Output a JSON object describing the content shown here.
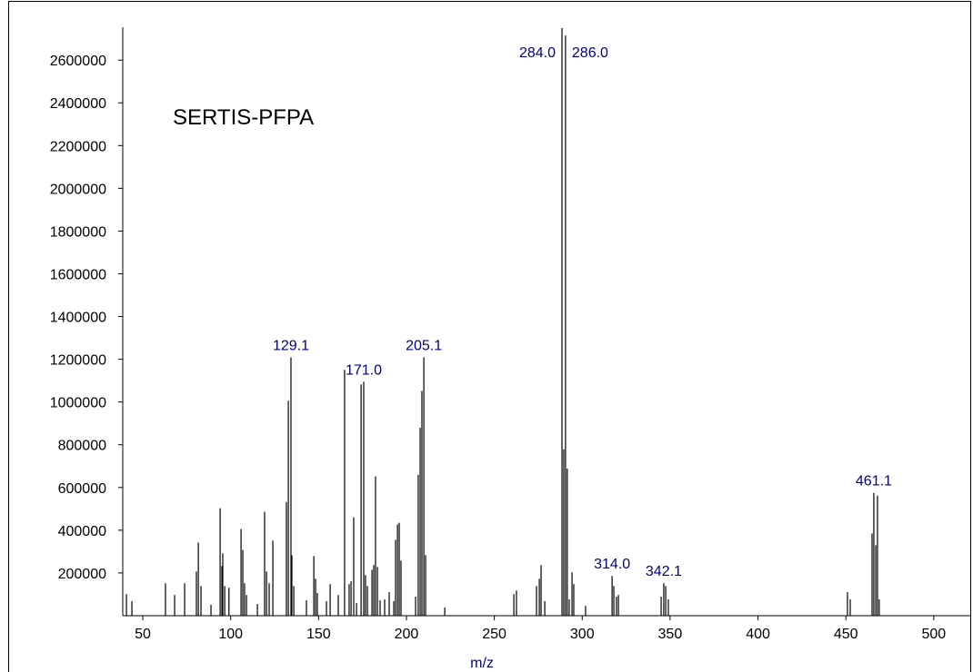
{
  "chart_data": {
    "type": "spectrum",
    "title": "SERTIS-PFPA",
    "x_label": "m/z",
    "color": "#000000",
    "label_color": "#000080",
    "xlim": [
      38.6,
      521.3
    ],
    "xticks": [
      50,
      100,
      150,
      200,
      250,
      300,
      350,
      400,
      450,
      500
    ],
    "ylim": [
      0,
      2860000
    ],
    "yticks": [
      200000,
      400000,
      600000,
      800000,
      1000000,
      1200000,
      1400000,
      1600000,
      1800000,
      2000000,
      2200000,
      2400000,
      2600000
    ],
    "x": [
      40.7,
      43.8,
      62.9,
      68.1,
      73.8,
      80.5,
      81.6,
      83.1,
      88.8,
      94.0,
      95.0,
      95.5,
      96.6,
      99.0,
      105.9,
      106.9,
      107.9,
      109.0,
      115.2,
      119.3,
      120.4,
      121.9,
      124.0,
      131.7,
      132.8,
      134.3,
      134.8,
      135.9,
      143.1,
      147.3,
      148.3,
      149.3,
      154.5,
      156.6,
      161.2,
      164.8,
      167.4,
      168.5,
      170.0,
      171.6,
      174.2,
      175.7,
      176.7,
      177.8,
      180.4,
      181.4,
      182.4,
      183.5,
      185.0,
      187.6,
      190.2,
      192.8,
      193.8,
      194.9,
      195.9,
      196.9,
      205.2,
      206.7,
      207.8,
      208.8,
      209.9,
      210.9,
      221.8,
      261.1,
      262.6,
      274.0,
      275.6,
      276.6,
      278.7,
      288.5,
      289.5,
      290.5,
      291.5,
      292.6,
      294.2,
      295.2,
      301.9,
      317.0,
      318.0,
      319.5,
      320.6,
      344.9,
      346.4,
      347.5,
      349.0,
      450.9,
      452.5,
      464.9,
      465.9,
      467.0,
      468.0,
      469.0
    ],
    "values": [
      101000,
      68000,
      152000,
      97000,
      152000,
      207000,
      342000,
      139000,
      51000,
      503000,
      232000,
      292000,
      139000,
      131000,
      406000,
      308000,
      152000,
      97000,
      55000,
      486000,
      207000,
      152000,
      351000,
      532000,
      1006000,
      1209000,
      283000,
      139000,
      72000,
      279000,
      173000,
      106000,
      68000,
      148000,
      97000,
      1150000,
      148000,
      161000,
      461000,
      59000,
      1082000,
      1095000,
      190000,
      139000,
      215000,
      237000,
      651000,
      228000,
      72000,
      76000,
      110000,
      68000,
      355000,
      427000,
      435000,
      258000,
      89000,
      659000,
      879000,
      1052000,
      1209000,
      283000,
      38000,
      101000,
      118000,
      139000,
      173000,
      237000,
      68000,
      2750000,
      778000,
      2715000,
      689000,
      76000,
      203000,
      148000,
      46000,
      186000,
      139000,
      89000,
      97000,
      89000,
      152000,
      139000,
      76000,
      110000,
      76000,
      385000,
      575000,
      330000,
      562000,
      76000
    ],
    "peak_labels": [
      null,
      null,
      null,
      null,
      null,
      null,
      null,
      null,
      null,
      null,
      null,
      null,
      null,
      null,
      null,
      null,
      null,
      null,
      null,
      null,
      null,
      null,
      null,
      null,
      null,
      "129.1",
      null,
      null,
      null,
      null,
      null,
      null,
      null,
      null,
      null,
      null,
      null,
      null,
      null,
      null,
      null,
      "171.0",
      null,
      null,
      null,
      null,
      null,
      null,
      null,
      null,
      null,
      null,
      null,
      null,
      null,
      null,
      null,
      null,
      null,
      null,
      "205.1",
      null,
      null,
      null,
      null,
      null,
      null,
      null,
      null,
      "284.0",
      null,
      "286.0",
      null,
      null,
      null,
      null,
      null,
      "314.0",
      null,
      null,
      null,
      null,
      "342.1",
      null,
      null,
      null,
      null,
      null,
      "461.1",
      null,
      null,
      null
    ]
  }
}
